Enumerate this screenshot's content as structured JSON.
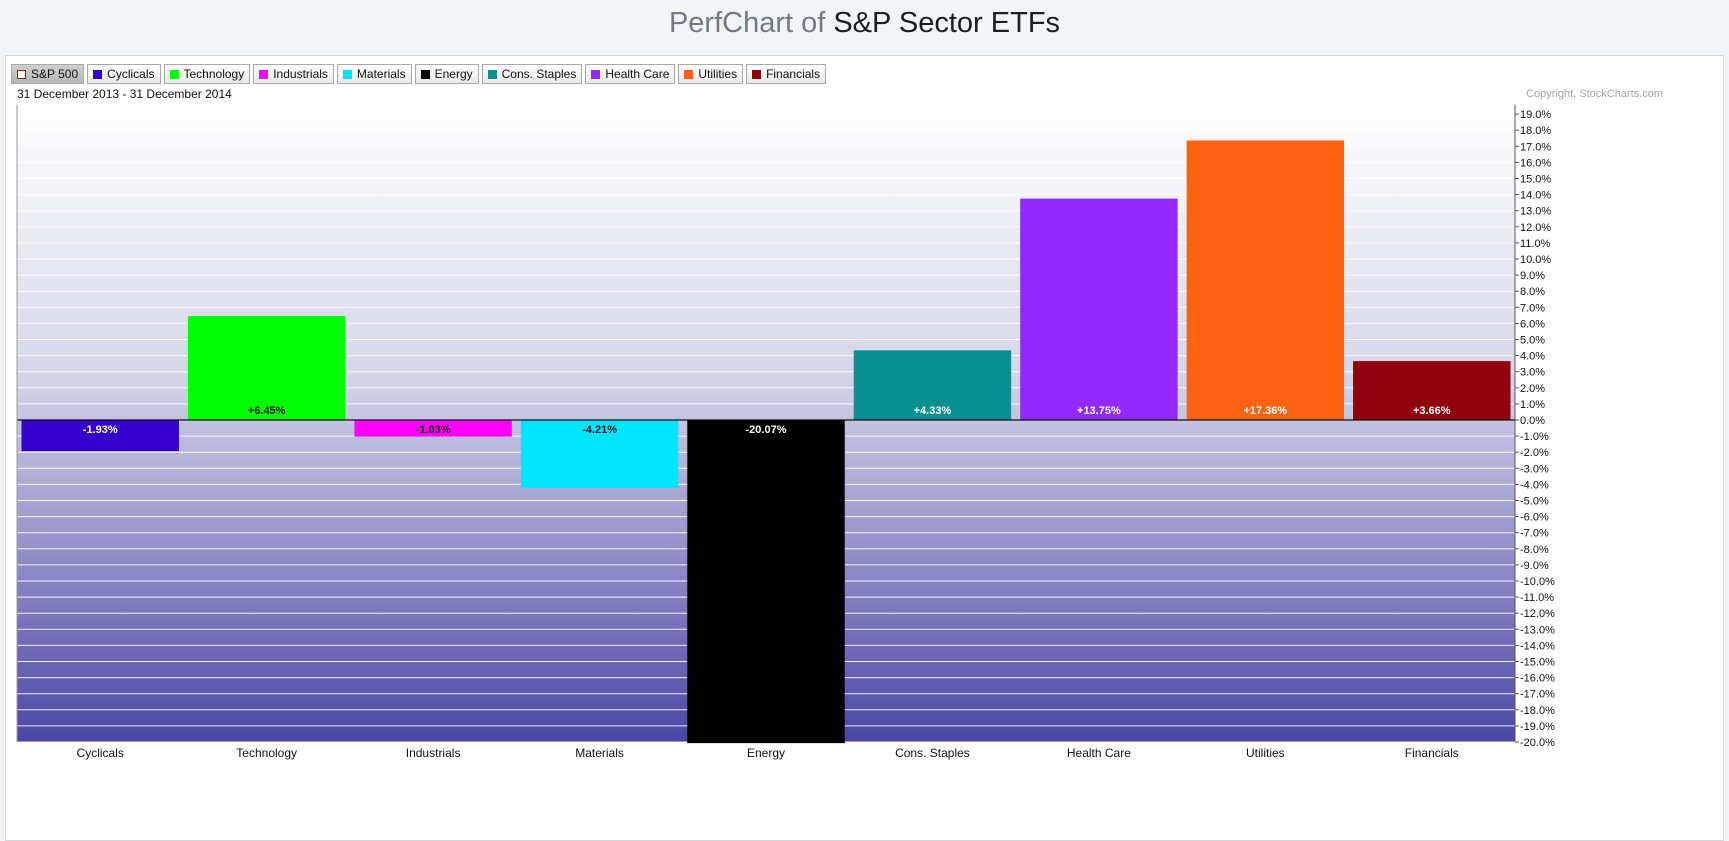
{
  "header": {
    "title_prefix": "PerfChart of",
    "title_main": "S&P Sector ETFs"
  },
  "legend": [
    {
      "label": "S&P 500",
      "color": "#ffffff",
      "active": true
    },
    {
      "label": "Cyclicals",
      "color": "#3300cc"
    },
    {
      "label": "Technology",
      "color": "#00ff00"
    },
    {
      "label": "Industrials",
      "color": "#ff00ff"
    },
    {
      "label": "Materials",
      "color": "#00e5ff"
    },
    {
      "label": "Energy",
      "color": "#000000"
    },
    {
      "label": "Cons. Staples",
      "color": "#098f8f"
    },
    {
      "label": "Health Care",
      "color": "#9229ff"
    },
    {
      "label": "Utilities",
      "color": "#ff6211"
    },
    {
      "label": "Financials",
      "color": "#8f000c"
    }
  ],
  "date_range": "31 December 2013 - 31 December 2014",
  "copyright": "Copyright, StockCharts.com",
  "chart_data": {
    "type": "bar",
    "categories": [
      "Cyclicals",
      "Technology",
      "Industrials",
      "Materials",
      "Energy",
      "Cons. Staples",
      "Health Care",
      "Utilities",
      "Financials"
    ],
    "values": [
      -1.93,
      6.45,
      -1.03,
      -4.21,
      -20.07,
      4.33,
      13.75,
      17.36,
      3.66
    ],
    "data_labels": [
      "-1.93%",
      "+6.45%",
      "-1.03%",
      "-4.21%",
      "-20.07%",
      "+4.33%",
      "+13.75%",
      "+17.36%",
      "+3.66%"
    ],
    "colors": [
      "#3300cc",
      "#00ff00",
      "#ff00ff",
      "#00e5ff",
      "#000000",
      "#098f8f",
      "#9229ff",
      "#ff6211",
      "#8f000c"
    ],
    "label_colors": [
      "#ffffff",
      "#1a1a1a",
      "#1a1a1a",
      "#1a1a1a",
      "#ffffff",
      "#ffffff",
      "#ffffff",
      "#ffffff",
      "#ffffff"
    ],
    "y_ticks": [
      "19.0%",
      "18.0%",
      "17.0%",
      "16.0%",
      "15.0%",
      "14.0%",
      "13.0%",
      "12.0%",
      "11.0%",
      "10.0%",
      "9.0%",
      "8.0%",
      "7.0%",
      "6.0%",
      "5.0%",
      "4.0%",
      "3.0%",
      "2.0%",
      "1.0%",
      "0.0%",
      "-1.0%",
      "-2.0%",
      "-3.0%",
      "-4.0%",
      "-5.0%",
      "-6.0%",
      "-7.0%",
      "-8.0%",
      "-9.0%",
      "-10.0%",
      "-11.0%",
      "-12.0%",
      "-13.0%",
      "-14.0%",
      "-15.0%",
      "-16.0%",
      "-17.0%",
      "-18.0%",
      "-19.0%",
      "-20.0%"
    ],
    "ylim": [
      -20,
      19
    ],
    "grid": true,
    "y_axis_position": "right"
  }
}
